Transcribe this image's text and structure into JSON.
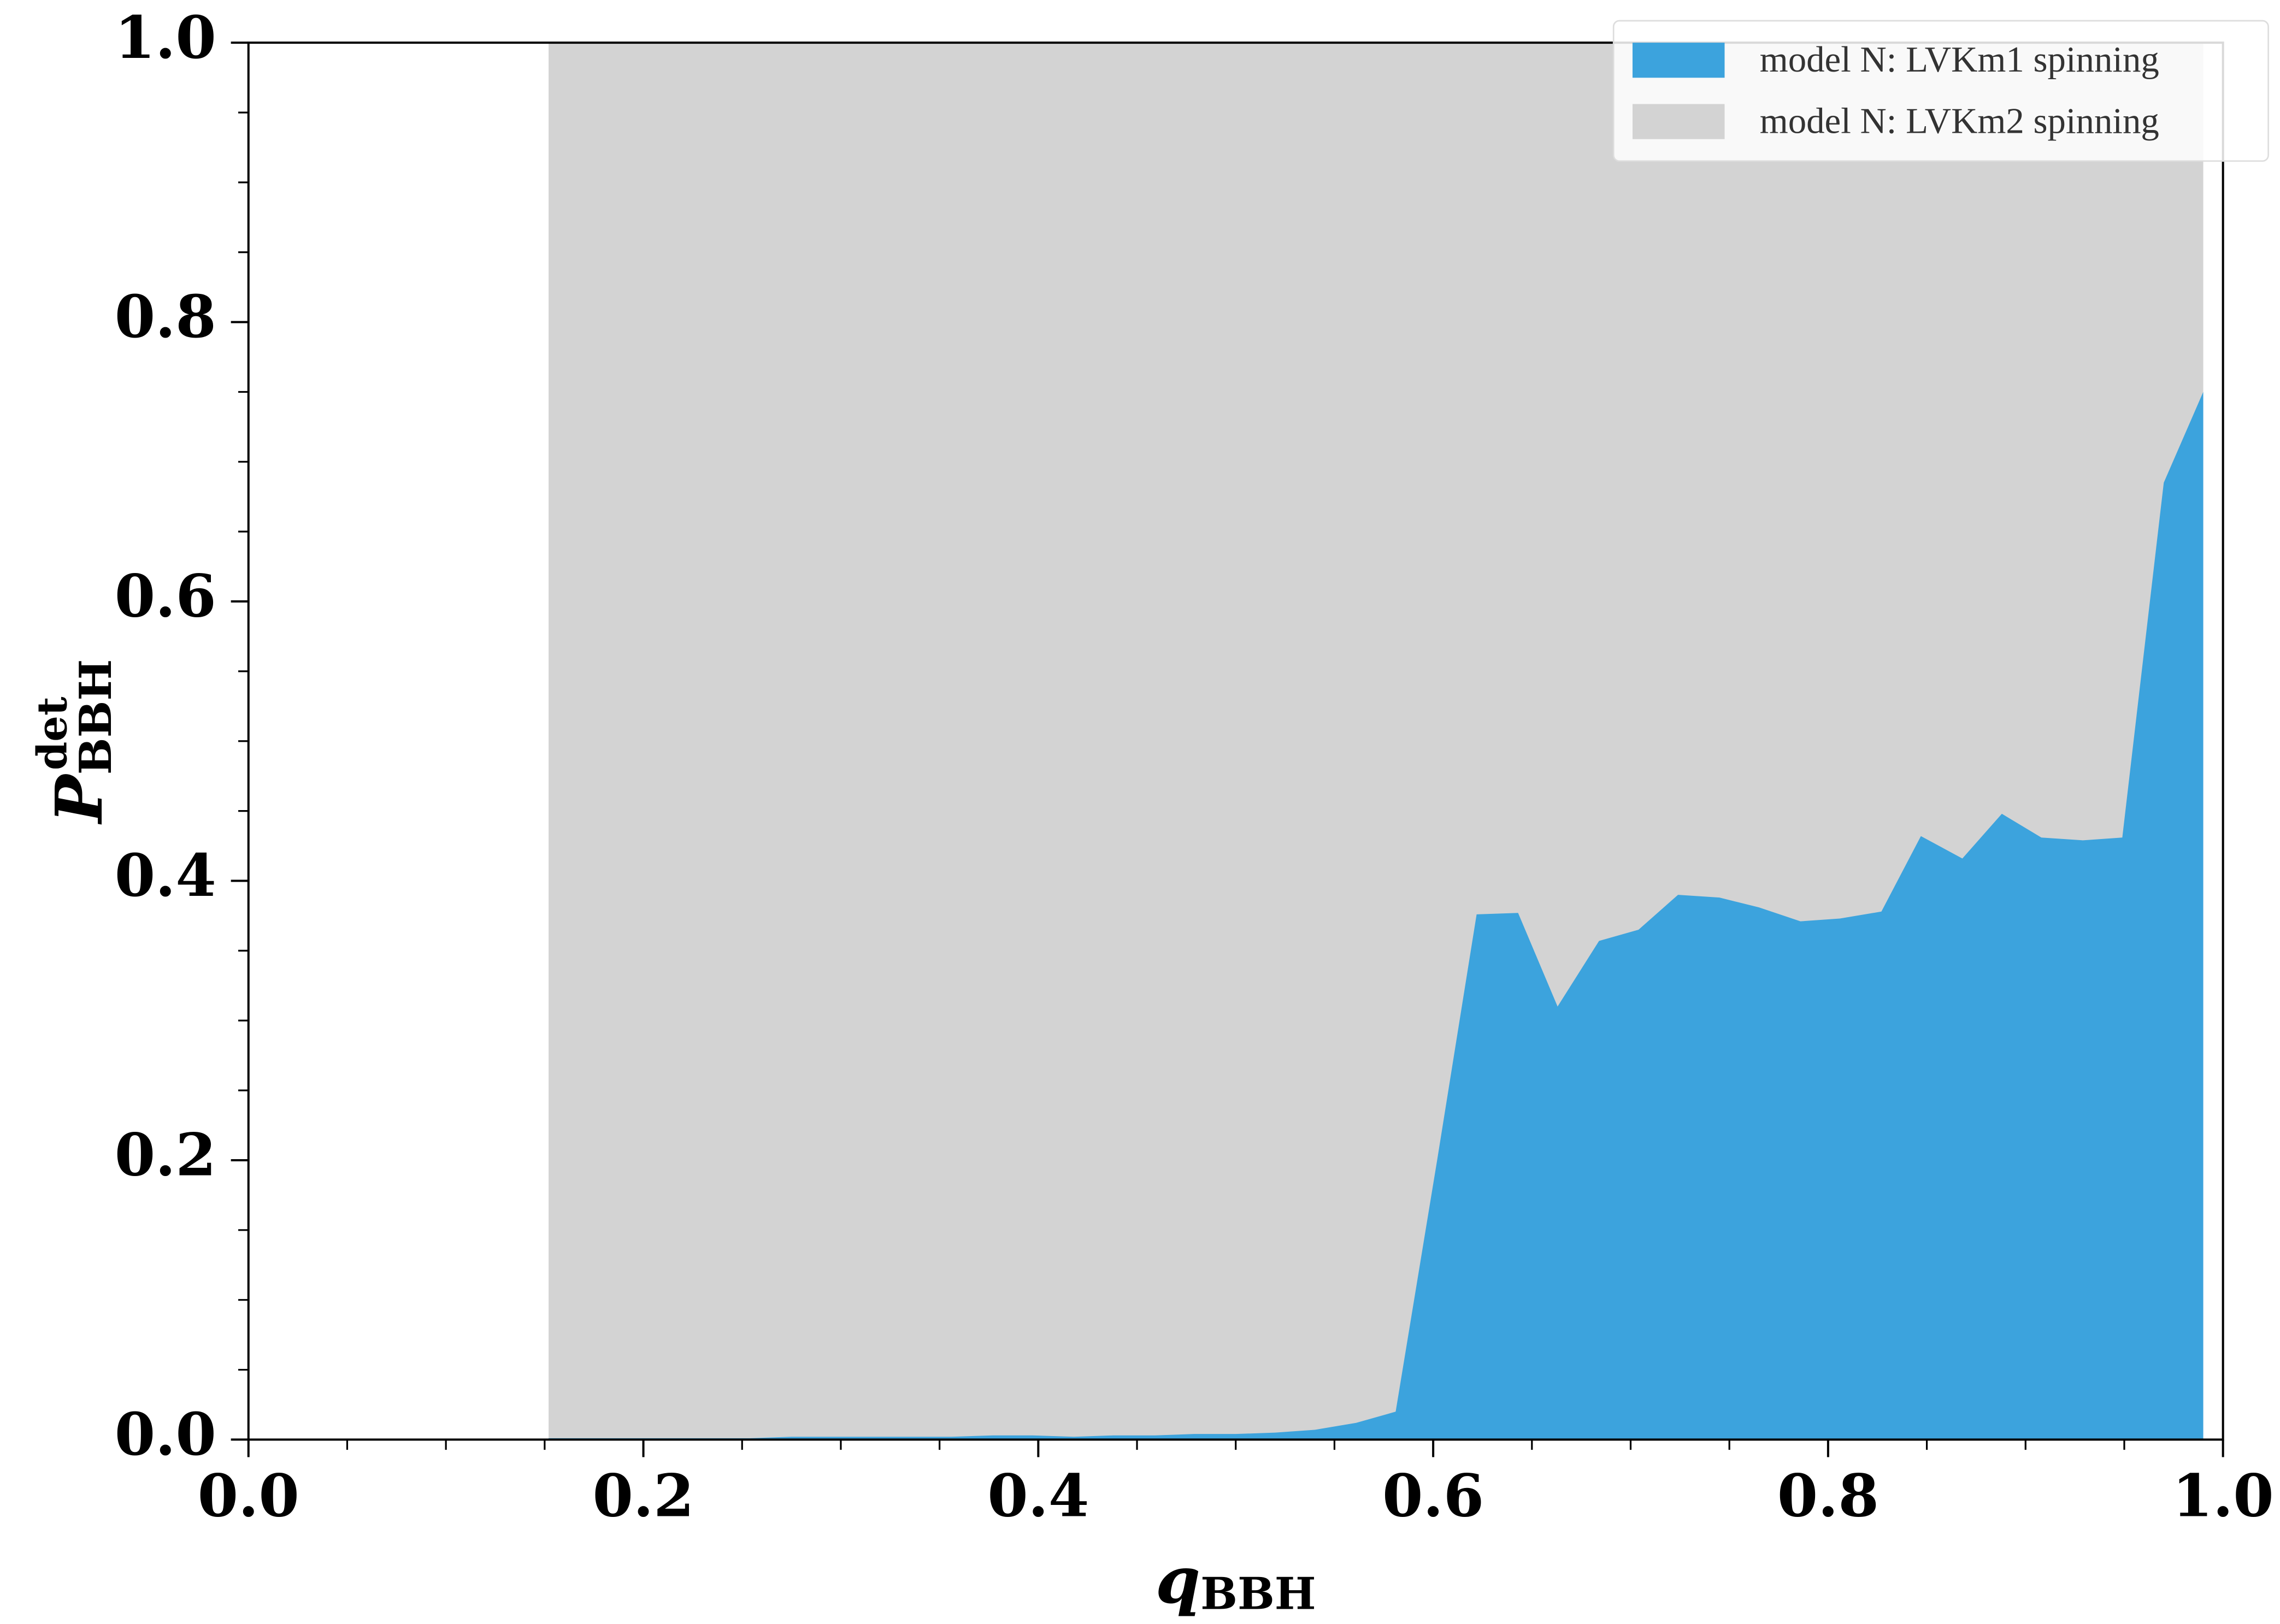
{
  "chart_data": {
    "type": "area",
    "xlabel": "q",
    "xlabel_sub": "BBH",
    "ylabel": "P",
    "ylabel_sub": "BBH",
    "ylabel_sup": "det",
    "xlim": [
      0,
      1
    ],
    "ylim": [
      0,
      1
    ],
    "xticks": [
      {
        "value": 0,
        "label": "0.0"
      },
      {
        "value": 0.2,
        "label": "0.2"
      },
      {
        "value": 0.4,
        "label": "0.4"
      },
      {
        "value": 0.6,
        "label": "0.6"
      },
      {
        "value": 0.8,
        "label": "0.8"
      },
      {
        "value": 1,
        "label": "1.0"
      }
    ],
    "yticks": [
      {
        "value": 0,
        "label": "0.0"
      },
      {
        "value": 0.2,
        "label": "0.2"
      },
      {
        "value": 0.4,
        "label": "0.4"
      },
      {
        "value": 0.6,
        "label": "0.6"
      },
      {
        "value": 0.8,
        "label": "0.8"
      },
      {
        "value": 1,
        "label": "1.0"
      }
    ],
    "xminorticks": [
      0.05,
      0.1,
      0.15,
      0.25,
      0.3,
      0.35,
      0.45,
      0.5,
      0.55,
      0.65,
      0.7,
      0.75,
      0.85,
      0.9,
      0.95
    ],
    "yminorticks": [
      0.05,
      0.1,
      0.15,
      0.25,
      0.3,
      0.35,
      0.45,
      0.5,
      0.55,
      0.65,
      0.7,
      0.75,
      0.85,
      0.9,
      0.95
    ],
    "legend": "upper right",
    "series": [
      {
        "name": "model N: LVKm1 spinning",
        "color": "#3ca3dd",
        "x": [
          0.152,
          0.172,
          0.193,
          0.213,
          0.234,
          0.254,
          0.275,
          0.295,
          0.316,
          0.336,
          0.356,
          0.377,
          0.397,
          0.418,
          0.438,
          0.459,
          0.479,
          0.5,
          0.52,
          0.54,
          0.561,
          0.581,
          0.602,
          0.622,
          0.643,
          0.663,
          0.684,
          0.704,
          0.724,
          0.745,
          0.765,
          0.786,
          0.806,
          0.827,
          0.847,
          0.868,
          0.888,
          0.908,
          0.929,
          0.949,
          0.97,
          0.99
        ],
        "values": [
          0.001,
          0.001,
          0.001,
          0.001,
          0.001,
          0.001,
          0.002,
          0.002,
          0.002,
          0.002,
          0.002,
          0.003,
          0.003,
          0.002,
          0.003,
          0.003,
          0.004,
          0.004,
          0.005,
          0.007,
          0.012,
          0.02,
          0.2,
          0.376,
          0.377,
          0.31,
          0.357,
          0.365,
          0.39,
          0.388,
          0.381,
          0.371,
          0.373,
          0.378,
          0.432,
          0.416,
          0.448,
          0.431,
          0.429,
          0.431,
          0.685,
          0.75
        ]
      },
      {
        "name": "model N: LVKm2 spinning",
        "color": "#d3d3d3",
        "x": [
          0.152,
          0.99
        ],
        "values": [
          1,
          1
        ]
      }
    ]
  }
}
